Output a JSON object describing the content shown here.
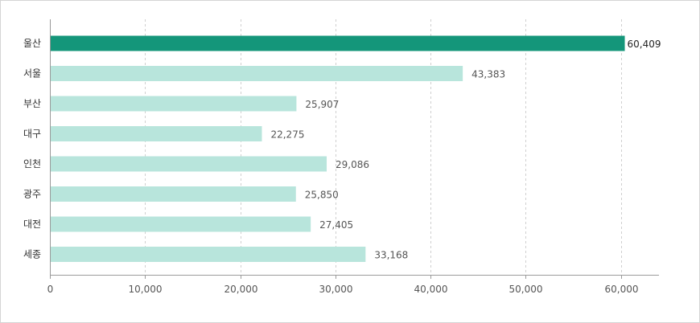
{
  "chart_data": {
    "type": "bar",
    "orientation": "horizontal",
    "categories": [
      "울산",
      "서울",
      "부산",
      "대구",
      "인천",
      "광주",
      "대전",
      "세종"
    ],
    "values": [
      60409,
      43383,
      25907,
      22275,
      29086,
      25850,
      27405,
      33168
    ],
    "value_labels": [
      "60,409",
      "43,383",
      "25,907",
      "22,275",
      "29,086",
      "25,850",
      "27,405",
      "33,168"
    ],
    "highlight_index": 0,
    "xlim": [
      0,
      64000
    ],
    "x_ticks": [
      0,
      10000,
      20000,
      30000,
      40000,
      50000,
      60000
    ],
    "x_tick_labels": [
      "0",
      "10,000",
      "20,000",
      "30,000",
      "40,000",
      "50,000",
      "60,000"
    ],
    "grid": "vertical-dashed",
    "title": "",
    "xlabel": "",
    "ylabel": "",
    "colors": {
      "highlight": "#14967a",
      "bar": "#b8e5dc",
      "grid": "#cfcfcf",
      "axis": "#9a9a9a"
    }
  }
}
